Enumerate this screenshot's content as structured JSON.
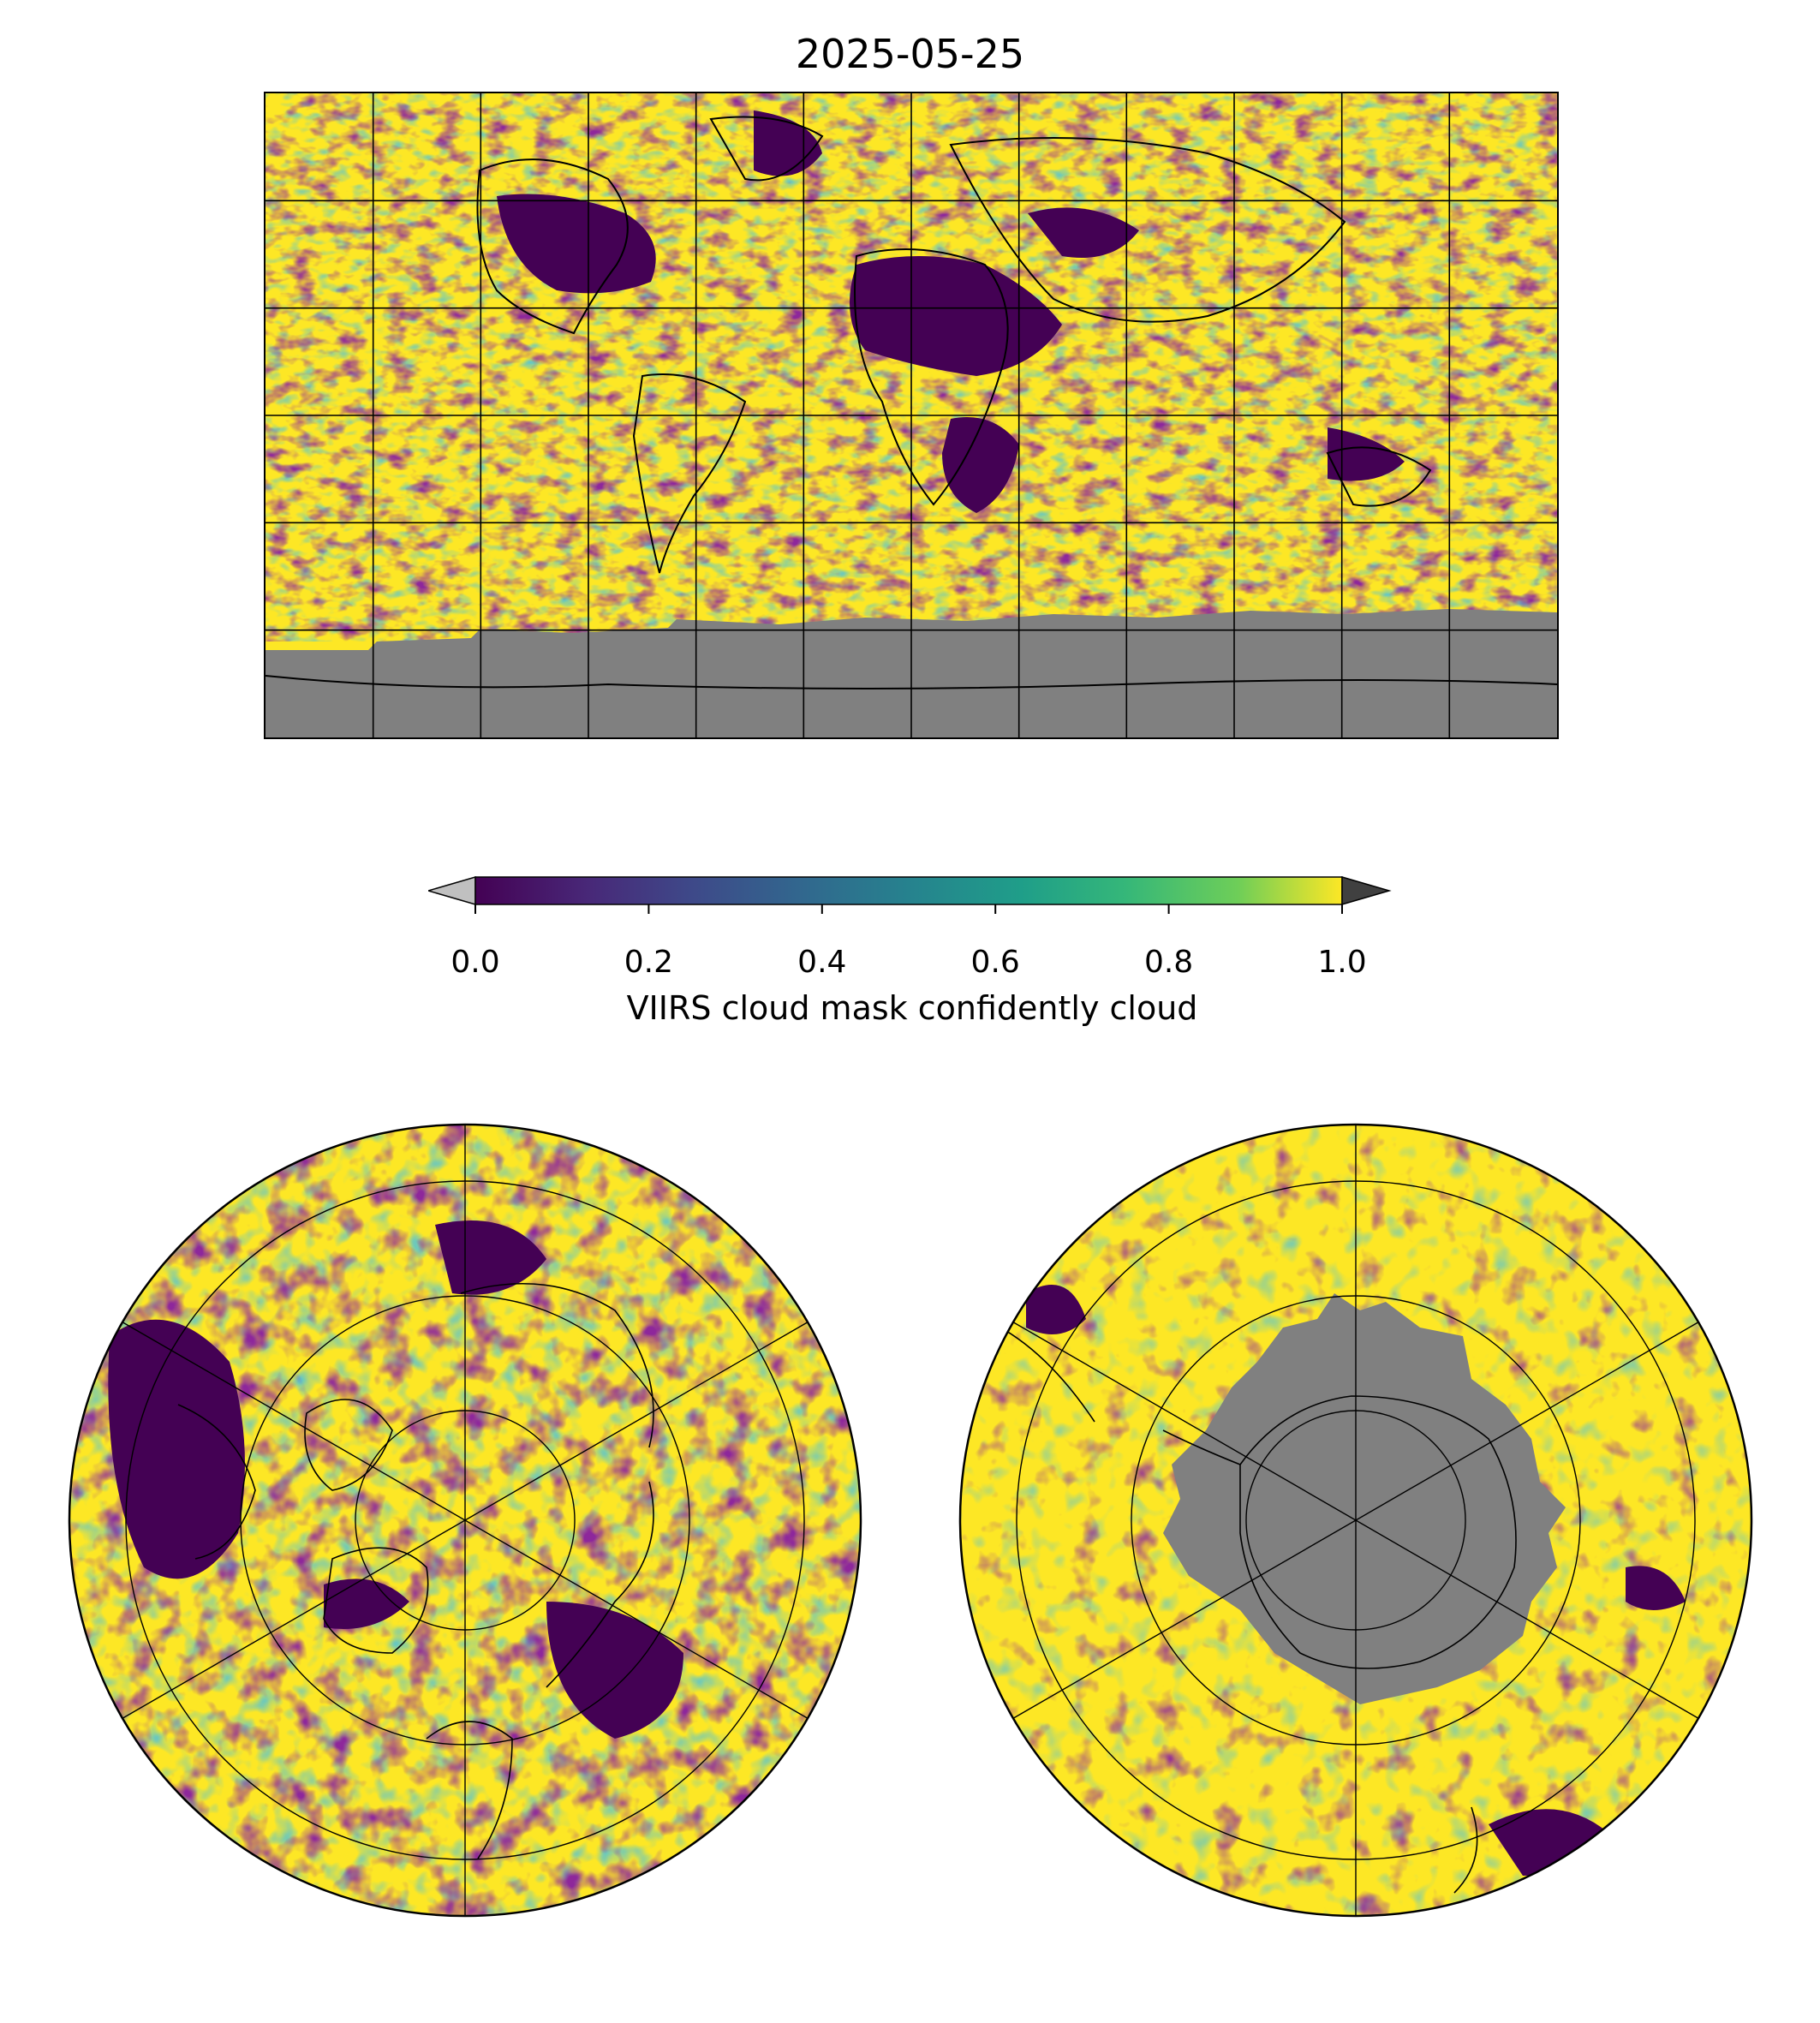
{
  "figure": {
    "title": "2025-05-25"
  },
  "colorbar": {
    "label": "VIIRS cloud mask confidently cloud",
    "ticks": [
      "0.0",
      "0.2",
      "0.4",
      "0.6",
      "0.8",
      "1.0"
    ],
    "tick_values": [
      0.0,
      0.2,
      0.4,
      0.6,
      0.8,
      1.0
    ],
    "range": [
      0.0,
      1.0
    ],
    "colormap": "viridis",
    "under_color": "#c0c0c0",
    "over_color": "#404040",
    "extend": "both"
  },
  "maps": {
    "world": {
      "projection": "equirectangular",
      "gridlines": true,
      "coastlines": true,
      "nodata_color": "#808080"
    },
    "north_polar": {
      "projection": "north-polar-stereographic",
      "gridlines": true,
      "coastlines": true
    },
    "south_polar": {
      "projection": "south-polar-stereographic",
      "gridlines": true,
      "coastlines": true,
      "nodata_color": "#808080"
    }
  },
  "colors": {
    "viridis_dark": "#440154",
    "viridis_blue": "#31688e",
    "viridis_teal": "#21918c",
    "viridis_green": "#5ec962",
    "viridis_yellow": "#fde725"
  }
}
